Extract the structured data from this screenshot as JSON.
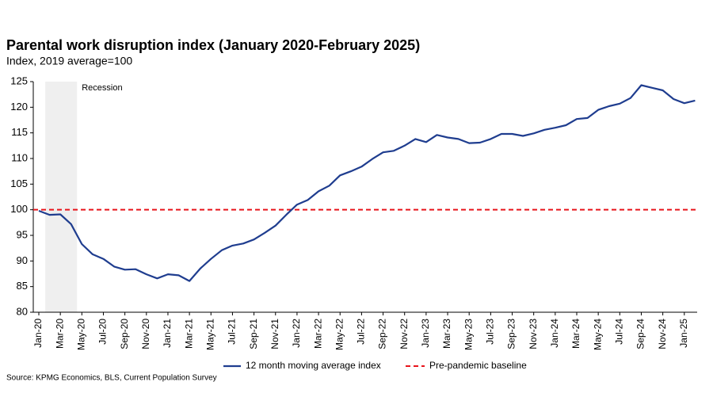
{
  "chart_data": {
    "type": "line",
    "title": "Parental work disruption index (January 2020-February 2025)",
    "subtitle": "Index, 2019 average=100",
    "source": "Source: KPMG Economics, BLS, Current Population Survey",
    "annotation": "Recession",
    "categories": [
      "Jan-20",
      null,
      "Mar-20",
      null,
      "May-20",
      null,
      "Jul-20",
      null,
      "Sep-20",
      null,
      "Nov-20",
      null,
      "Jan-21",
      null,
      "Mar-21",
      null,
      "May-21",
      null,
      "Jul-21",
      null,
      "Sep-21",
      null,
      "Nov-21",
      null,
      "Jan-22",
      null,
      "Mar-22",
      null,
      "May-22",
      null,
      "Jul-22",
      null,
      "Sep-22",
      null,
      "Nov-22",
      null,
      "Jan-23",
      null,
      "Mar-23",
      null,
      "May-23",
      null,
      "Jul-23",
      null,
      "Sep-23",
      null,
      "Nov-23",
      null,
      "Jan-24",
      null,
      "Mar-24",
      null,
      "May-24",
      null,
      "Jul-24",
      null,
      "Sep-24",
      null,
      "Nov-24",
      null,
      "Jan-25",
      null
    ],
    "series": [
      {
        "name": "12 month moving average index",
        "color": "#1f3d8f",
        "values": [
          99.8,
          99.0,
          99.1,
          97.2,
          93.3,
          91.3,
          90.4,
          88.9,
          88.3,
          88.4,
          87.4,
          86.6,
          87.4,
          87.2,
          86.1,
          88.5,
          90.4,
          92.1,
          93.0,
          93.4,
          94.2,
          95.5,
          96.9,
          99.0,
          101.0,
          101.9,
          103.6,
          104.7,
          106.7,
          107.5,
          108.4,
          109.9,
          111.2,
          111.5,
          112.5,
          113.8,
          113.2,
          114.6,
          114.1,
          113.8,
          113.0,
          113.1,
          113.8,
          114.8,
          114.8,
          114.4,
          114.9,
          115.6,
          116.0,
          116.5,
          117.7,
          117.9,
          119.5,
          120.2,
          120.7,
          121.8,
          124.3,
          123.8,
          123.3,
          121.6,
          120.8,
          121.3
        ]
      }
    ],
    "baseline": {
      "name": "Pre-pandemic baseline",
      "value": 100,
      "color": "#e8141b"
    },
    "ylim": [
      80,
      125
    ],
    "yticks": [
      80,
      85,
      90,
      95,
      100,
      105,
      110,
      115,
      120,
      125
    ]
  }
}
